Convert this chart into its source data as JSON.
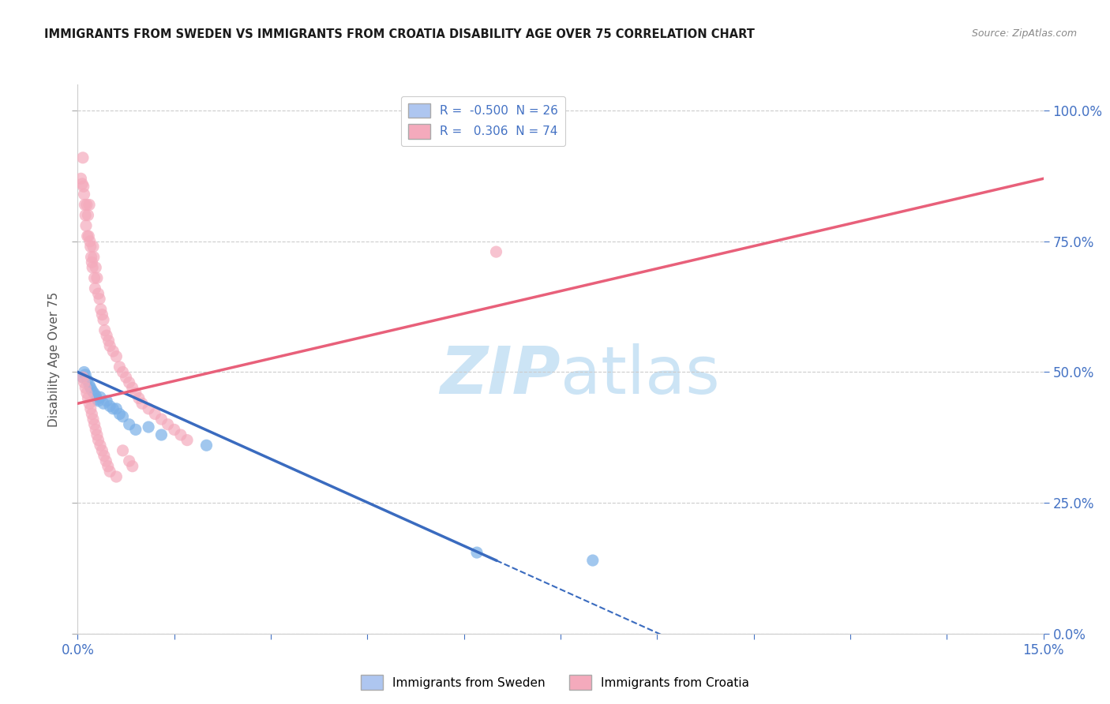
{
  "title": "IMMIGRANTS FROM SWEDEN VS IMMIGRANTS FROM CROATIA DISABILITY AGE OVER 75 CORRELATION CHART",
  "source": "Source: ZipAtlas.com",
  "ylabel": "Disability Age Over 75",
  "legend1_label": "R =  -0.500  N = 26",
  "legend2_label": "R =   0.306  N = 74",
  "legend1_color": "#aec6f0",
  "legend2_color": "#f4aabc",
  "scatter_blue_x": [
    0.0008,
    0.001,
    0.0012,
    0.0015,
    0.0018,
    0.002,
    0.0022,
    0.0025,
    0.0028,
    0.003,
    0.0032,
    0.0035,
    0.004,
    0.0045,
    0.005,
    0.0055,
    0.006,
    0.0065,
    0.007,
    0.008,
    0.009,
    0.011,
    0.013,
    0.02,
    0.062,
    0.08
  ],
  "scatter_blue_y": [
    0.49,
    0.5,
    0.495,
    0.485,
    0.475,
    0.47,
    0.465,
    0.46,
    0.455,
    0.448,
    0.445,
    0.452,
    0.44,
    0.445,
    0.435,
    0.43,
    0.43,
    0.42,
    0.415,
    0.4,
    0.39,
    0.395,
    0.38,
    0.36,
    0.155,
    0.14
  ],
  "scatter_pink_x": [
    0.0005,
    0.0007,
    0.0008,
    0.0009,
    0.001,
    0.0011,
    0.0012,
    0.0013,
    0.0014,
    0.0015,
    0.0016,
    0.0017,
    0.0018,
    0.0019,
    0.002,
    0.0021,
    0.0022,
    0.0023,
    0.0024,
    0.0025,
    0.0026,
    0.0027,
    0.0028,
    0.003,
    0.0032,
    0.0034,
    0.0036,
    0.0038,
    0.004,
    0.0042,
    0.0045,
    0.0048,
    0.005,
    0.0055,
    0.006,
    0.0065,
    0.007,
    0.0075,
    0.008,
    0.0085,
    0.009,
    0.0095,
    0.01,
    0.011,
    0.012,
    0.013,
    0.014,
    0.015,
    0.016,
    0.017,
    0.0008,
    0.001,
    0.0012,
    0.0014,
    0.0016,
    0.0018,
    0.002,
    0.0022,
    0.0024,
    0.0026,
    0.0028,
    0.003,
    0.0032,
    0.0035,
    0.0038,
    0.0041,
    0.0044,
    0.0047,
    0.005,
    0.006,
    0.007,
    0.008,
    0.0085,
    0.065
  ],
  "scatter_pink_y": [
    0.87,
    0.86,
    0.91,
    0.855,
    0.84,
    0.82,
    0.8,
    0.78,
    0.82,
    0.76,
    0.8,
    0.76,
    0.82,
    0.75,
    0.74,
    0.72,
    0.71,
    0.7,
    0.74,
    0.72,
    0.68,
    0.66,
    0.7,
    0.68,
    0.65,
    0.64,
    0.62,
    0.61,
    0.6,
    0.58,
    0.57,
    0.56,
    0.55,
    0.54,
    0.53,
    0.51,
    0.5,
    0.49,
    0.48,
    0.47,
    0.46,
    0.45,
    0.44,
    0.43,
    0.42,
    0.41,
    0.4,
    0.39,
    0.38,
    0.37,
    0.49,
    0.48,
    0.47,
    0.46,
    0.45,
    0.44,
    0.43,
    0.42,
    0.41,
    0.4,
    0.39,
    0.38,
    0.37,
    0.36,
    0.35,
    0.34,
    0.33,
    0.32,
    0.31,
    0.3,
    0.35,
    0.33,
    0.32,
    0.73
  ],
  "trend_blue_x0": 0.0,
  "trend_blue_y0": 0.5,
  "trend_blue_x1": 0.065,
  "trend_blue_y1": 0.14,
  "trend_blue_dash_x0": 0.065,
  "trend_blue_dash_x1": 0.15,
  "trend_pink_x0": 0.0,
  "trend_pink_y0": 0.44,
  "trend_pink_x1": 0.15,
  "trend_pink_y1": 0.87,
  "xmin": 0.0,
  "xmax": 0.15,
  "ymin": 0.0,
  "ymax": 1.05,
  "xtick_positions": [
    0.0,
    0.015,
    0.03,
    0.045,
    0.06,
    0.075,
    0.09,
    0.105,
    0.12,
    0.135,
    0.15
  ],
  "ytick_positions": [
    0.0,
    0.25,
    0.5,
    0.75,
    1.0
  ],
  "background_color": "#ffffff",
  "grid_color": "#cccccc",
  "title_color": "#1a1a1a",
  "scatter_blue_color": "#7ab0e8",
  "scatter_pink_color": "#f4aabc",
  "trend_blue_color": "#3a6bbf",
  "trend_pink_color": "#e8607a",
  "watermark_color": "#cce4f5",
  "right_axis_color": "#4472c4"
}
